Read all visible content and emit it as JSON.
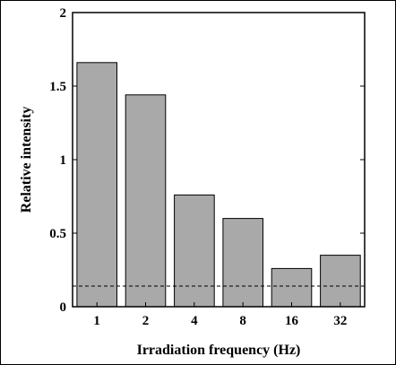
{
  "chart_data": {
    "type": "bar",
    "title": "",
    "xlabel": "Irradiation frequency (Hz)",
    "ylabel": "Relative intensity",
    "categories": [
      "1",
      "2",
      "4",
      "8",
      "16",
      "32"
    ],
    "values": [
      1.66,
      1.44,
      0.76,
      0.6,
      0.26,
      0.35
    ],
    "ylim": [
      0,
      2
    ],
    "yticks": [
      "0",
      "0.5",
      "1",
      "1.5",
      "2"
    ],
    "reference_line": {
      "y": 0.14,
      "style": "dashed"
    },
    "grid": false,
    "legend": "none",
    "bar_color": "#a9a9a9",
    "bar_edge_color": "#000000"
  }
}
